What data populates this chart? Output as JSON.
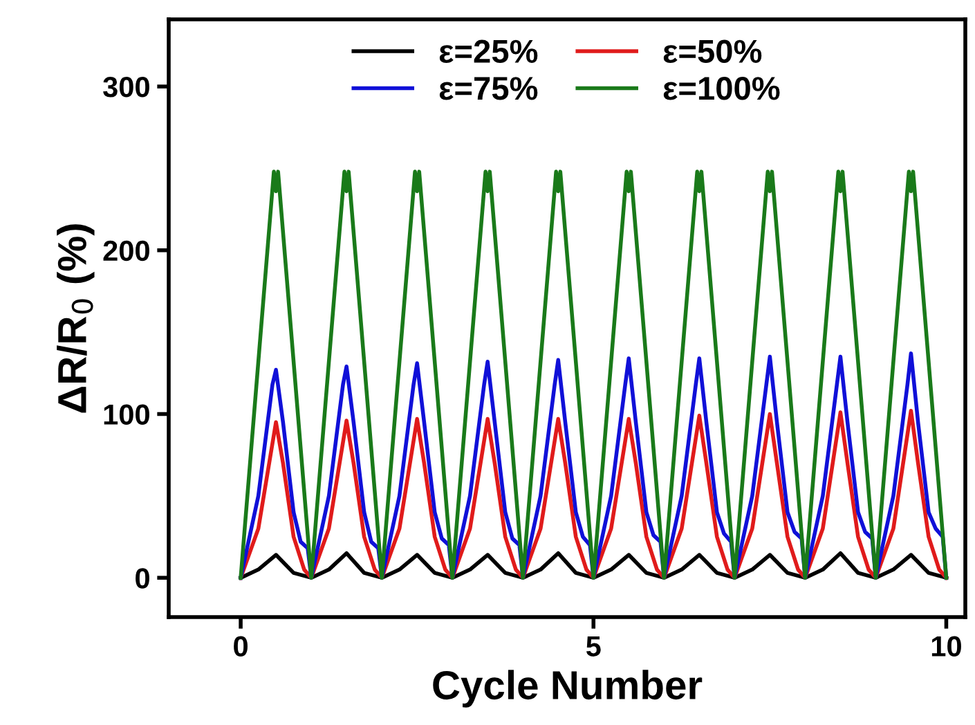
{
  "chart_data": {
    "type": "line",
    "xlabel": "Cycle Number",
    "ylabel": "ΔR/R$_{0}$ (%)",
    "xlim": [
      -1.02,
      10.27
    ],
    "ylim": [
      -24,
      341
    ],
    "xticks": [
      0,
      5,
      10
    ],
    "yticks": [
      0,
      100,
      200,
      300
    ],
    "grid": false,
    "legend": "top",
    "marker": "none",
    "line_style": "solid",
    "series": [
      {
        "name": "ε=25%",
        "color": "#000000",
        "x": [
          0,
          0.25,
          0.5,
          0.75,
          1,
          1.25,
          1.5,
          1.75,
          2,
          2.25,
          2.5,
          2.75,
          3,
          3.25,
          3.5,
          3.75,
          4,
          4.25,
          4.5,
          4.75,
          5,
          5.25,
          5.5,
          5.75,
          6,
          6.25,
          6.5,
          6.75,
          7,
          7.25,
          7.5,
          7.75,
          8,
          8.25,
          8.5,
          8.75,
          9,
          9.25,
          9.5,
          9.75,
          10
        ],
        "values": [
          0,
          5,
          14,
          3,
          0,
          5,
          15,
          3,
          0,
          5,
          14,
          3,
          0,
          5,
          14,
          3,
          0,
          5,
          15,
          3,
          0,
          5,
          14,
          3,
          0,
          5,
          14,
          3,
          0,
          5,
          14,
          3,
          0,
          5,
          15,
          3,
          0,
          5,
          14,
          3,
          0
        ]
      },
      {
        "name": "ε=50%",
        "color": "#e01b1b",
        "x": [
          0,
          0.25,
          0.5,
          0.6,
          0.75,
          0.9,
          1,
          1.25,
          1.5,
          1.6,
          1.75,
          1.9,
          2,
          2.25,
          2.5,
          2.6,
          2.75,
          2.9,
          3,
          3.25,
          3.5,
          3.6,
          3.75,
          3.9,
          4,
          4.25,
          4.5,
          4.6,
          4.75,
          4.9,
          5,
          5.25,
          5.5,
          5.6,
          5.75,
          5.9,
          6,
          6.25,
          6.5,
          6.6,
          6.75,
          6.9,
          7,
          7.25,
          7.5,
          7.6,
          7.75,
          7.9,
          8,
          8.25,
          8.5,
          8.6,
          8.75,
          8.9,
          9,
          9.25,
          9.5,
          9.6,
          9.75,
          9.9,
          10
        ],
        "values": [
          0,
          30,
          95,
          70,
          25,
          5,
          0,
          30,
          96,
          70,
          25,
          5,
          0,
          30,
          97,
          70,
          25,
          5,
          0,
          30,
          97,
          70,
          25,
          5,
          0,
          30,
          97,
          70,
          25,
          5,
          0,
          30,
          97,
          70,
          25,
          5,
          0,
          30,
          99,
          70,
          25,
          5,
          0,
          30,
          100,
          70,
          25,
          5,
          0,
          30,
          101,
          70,
          25,
          5,
          0,
          30,
          102,
          70,
          25,
          5,
          0
        ]
      },
      {
        "name": "ε=75%",
        "color": "#1010d8",
        "x": [
          0,
          0.25,
          0.45,
          0.5,
          0.6,
          0.75,
          0.85,
          0.95,
          1,
          1.25,
          1.45,
          1.5,
          1.6,
          1.75,
          1.85,
          1.95,
          2,
          2.25,
          2.45,
          2.5,
          2.6,
          2.75,
          2.85,
          2.95,
          3,
          3.25,
          3.45,
          3.5,
          3.6,
          3.75,
          3.85,
          3.95,
          4,
          4.25,
          4.45,
          4.5,
          4.6,
          4.75,
          4.85,
          4.95,
          5,
          5.25,
          5.45,
          5.5,
          5.6,
          5.75,
          5.85,
          5.95,
          6,
          6.25,
          6.45,
          6.5,
          6.6,
          6.75,
          6.85,
          6.95,
          7,
          7.25,
          7.45,
          7.5,
          7.6,
          7.75,
          7.85,
          7.95,
          8,
          8.25,
          8.45,
          8.5,
          8.6,
          8.75,
          8.85,
          8.95,
          9,
          9.25,
          9.45,
          9.5,
          9.6,
          9.75,
          9.85,
          9.95,
          10
        ],
        "values": [
          0,
          50,
          118,
          127,
          95,
          40,
          22,
          18,
          0,
          50,
          118,
          129,
          95,
          40,
          22,
          18,
          0,
          50,
          118,
          131,
          95,
          40,
          24,
          20,
          0,
          50,
          118,
          132,
          95,
          40,
          24,
          20,
          0,
          50,
          118,
          133,
          95,
          40,
          25,
          20,
          0,
          50,
          118,
          134,
          95,
          40,
          26,
          22,
          0,
          50,
          118,
          134,
          95,
          40,
          27,
          22,
          0,
          50,
          118,
          135,
          95,
          40,
          28,
          24,
          0,
          50,
          118,
          135,
          95,
          40,
          28,
          24,
          0,
          50,
          118,
          137,
          95,
          40,
          30,
          25,
          0
        ]
      },
      {
        "name": "ε=100%",
        "color": "#1a7a1a",
        "x": [
          0,
          0.47,
          0.5,
          0.53,
          1,
          1.47,
          1.5,
          1.53,
          2,
          2.47,
          2.5,
          2.53,
          3,
          3.47,
          3.5,
          3.53,
          4,
          4.47,
          4.5,
          4.53,
          5,
          5.47,
          5.5,
          5.53,
          6,
          6.47,
          6.5,
          6.53,
          7,
          7.47,
          7.5,
          7.53,
          8,
          8.47,
          8.5,
          8.53,
          9,
          9.47,
          9.5,
          9.53,
          10
        ],
        "values": [
          0,
          248,
          236,
          248,
          0,
          248,
          236,
          248,
          0,
          248,
          236,
          248,
          0,
          248,
          236,
          248,
          0,
          248,
          236,
          248,
          0,
          248,
          236,
          248,
          0,
          248,
          236,
          248,
          0,
          248,
          236,
          248,
          0,
          248,
          236,
          248,
          0,
          248,
          236,
          248,
          0
        ]
      }
    ]
  }
}
